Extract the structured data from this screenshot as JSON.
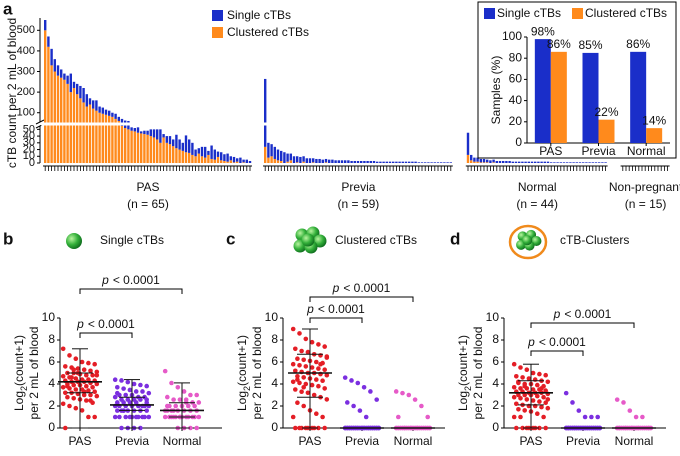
{
  "chart_data": [
    {
      "type": "bar",
      "stacked": true,
      "panel": "a",
      "y_label": "cTB count per 2 mL of blood",
      "series": [
        {
          "name": "Single cTBs",
          "color": "#1a2ec9"
        },
        {
          "name": "Clustered cTBs",
          "color": "#ff8a1c"
        }
      ],
      "ylim_lower": [
        0,
        55
      ],
      "yticks_lower": [
        0,
        10,
        20,
        30,
        40,
        50
      ],
      "ylim_upper": [
        55,
        550
      ],
      "yticks_upper": [
        100,
        200,
        300,
        400,
        500
      ],
      "groups": [
        {
          "label": "PAS",
          "n_label": "(n = 65)",
          "values": [
            [
              50,
              50,
              80,
              60,
              50,
              40,
              30,
              40,
              90,
              30,
              50,
              60,
              70,
              60,
              30,
              40,
              50,
              30,
              30,
              25,
              25,
              20,
              25,
              20,
              15,
              10,
              10,
              5,
              5,
              8,
              3,
              5,
              6,
              10,
              12,
              15,
              20,
              5,
              10,
              12,
              10,
              20,
              15,
              12,
              25,
              20,
              18,
              10,
              8,
              14,
              16,
              6,
              20,
              15,
              8,
              12,
              10,
              12,
              6,
              8,
              5,
              8,
              4,
              5,
              3
            ],
            [
              500,
              420,
              330,
              300,
              280,
              270,
              260,
              240,
              200,
              220,
              190,
              170,
              150,
              130,
              140,
              120,
              110,
              100,
              95,
              90,
              85,
              80,
              70,
              60,
              55,
              52,
              50,
              48,
              47,
              45,
              44,
              43,
              42,
              40,
              38,
              35,
              30,
              38,
              30,
              28,
              25,
              22,
              20,
              18,
              16,
              15,
              12,
              10,
              14,
              10,
              8,
              12,
              6,
              5,
              9,
              4,
              3,
              2,
              4,
              1,
              2,
              0,
              1,
              0,
              0
            ]
          ]
        },
        {
          "label": "Previa",
          "n_label": "(n = 59)",
          "values": [
            [
              240,
              22,
              18,
              18,
              16,
              15,
              16,
              12,
              10,
              10,
              9,
              9,
              8,
              7,
              7,
              6,
              6,
              6,
              5,
              5,
              5,
              5,
              4,
              4,
              4,
              4,
              4,
              3,
              3,
              3,
              3,
              3,
              3,
              3,
              3,
              2,
              2,
              2,
              2,
              2,
              2,
              2,
              2,
              2,
              2,
              2,
              2,
              2,
              1,
              1,
              1,
              1,
              1,
              1,
              1,
              1,
              1,
              1,
              1
            ],
            [
              24,
              8,
              10,
              6,
              4,
              3,
              0,
              2,
              4,
              0,
              1,
              0,
              2,
              0,
              0,
              1,
              0,
              0,
              0,
              1,
              0,
              0,
              0,
              0,
              0,
              0,
              0,
              0,
              0,
              0,
              0,
              0,
              0,
              0,
              0,
              0,
              0,
              0,
              0,
              0,
              0,
              0,
              0,
              0,
              0,
              0,
              0,
              0,
              0,
              0,
              0,
              0,
              0,
              0,
              0,
              0,
              0,
              0,
              0
            ]
          ]
        },
        {
          "label": "Normal",
          "n_label": "(n = 44)",
          "values": [
            [
              33,
              8,
              6,
              6,
              5,
              5,
              4,
              4,
              4,
              3,
              3,
              3,
              3,
              3,
              2,
              2,
              2,
              2,
              2,
              2,
              2,
              2,
              2,
              2,
              2,
              2,
              1,
              1,
              1,
              1,
              1,
              1,
              1,
              1,
              1,
              1,
              1,
              1,
              1,
              1,
              1,
              1,
              1,
              1
            ],
            [
              12,
              4,
              2,
              2,
              1,
              1,
              1,
              0,
              1,
              0,
              0,
              0,
              0,
              0,
              0,
              0,
              0,
              0,
              0,
              0,
              0,
              0,
              0,
              0,
              0,
              0,
              0,
              0,
              0,
              0,
              0,
              0,
              0,
              0,
              0,
              0,
              0,
              0,
              0,
              0,
              0,
              0,
              0,
              0
            ]
          ]
        },
        {
          "label": "Non-pregnant",
          "n_label": "(n = 15)",
          "values": [
            [
              0,
              0,
              0,
              0,
              0,
              0,
              0,
              0,
              0,
              0,
              0,
              0,
              0,
              0,
              0
            ],
            [
              0,
              0,
              0,
              0,
              0,
              0,
              0,
              0,
              0,
              0,
              0,
              0,
              0,
              0,
              0
            ]
          ]
        }
      ]
    },
    {
      "type": "bar",
      "stacked": false,
      "y_label": "Samples (%)",
      "categories": [
        "PAS",
        "Previa",
        "Normal"
      ],
      "series": [
        {
          "name": "Single cTBs",
          "color": "#1a2ec9",
          "values": [
            98,
            85,
            86
          ],
          "value_labels": [
            "98%",
            "85%",
            "86%"
          ]
        },
        {
          "name": "Clustered cTBs",
          "color": "#ff8a1c",
          "values": [
            86,
            22,
            14
          ],
          "value_labels": [
            "86%",
            "22%",
            "14%"
          ]
        }
      ],
      "ylim": [
        0,
        100
      ],
      "yticks": [
        0,
        20,
        40,
        60,
        80,
        100
      ]
    },
    {
      "type": "strip",
      "panel": "b",
      "title": "Single cTBs",
      "y_label": {
        "prefix": "Log",
        "sub": "2",
        "suffix": "(count+1)",
        "line2": "per 2 mL of blood"
      },
      "categories": [
        "PAS",
        "Previa",
        "Normal"
      ],
      "colors": [
        "#e41e26",
        "#7b2fe0",
        "#e65ac8"
      ],
      "ylim": [
        0,
        10
      ],
      "yticks": [
        0,
        2,
        4,
        6,
        8,
        10
      ],
      "values": [
        [
          7.2,
          6.6,
          6.3,
          6.0,
          5.9,
          5.8,
          5.6,
          5.5,
          5.4,
          5.3,
          5.2,
          5.1,
          5.0,
          5.0,
          4.9,
          4.8,
          4.8,
          4.7,
          4.6,
          4.5,
          4.4,
          4.4,
          4.3,
          4.3,
          4.2,
          4.2,
          4.2,
          4.1,
          4.0,
          4.0,
          3.9,
          3.9,
          3.8,
          3.7,
          3.7,
          3.6,
          3.5,
          3.5,
          3.4,
          3.3,
          3.2,
          3.2,
          3.1,
          3.0,
          3.0,
          2.9,
          2.8,
          2.7,
          2.6,
          2.5,
          2.3,
          2.2,
          2.0,
          1.8,
          1.6,
          1.0,
          1.0,
          0,
          4.6,
          5.0,
          3.3,
          2.5,
          4.8,
          3.8,
          5.3
        ],
        [
          4.39,
          4.32,
          4.17,
          4,
          3.91,
          3.81,
          3.7,
          3.58,
          3.46,
          3.32,
          3.32,
          3.17,
          3,
          3,
          3,
          2.81,
          2.81,
          2.81,
          2.58,
          2.58,
          2.58,
          2.58,
          2.32,
          2.32,
          2.32,
          2.32,
          2.32,
          2,
          2,
          2,
          2,
          2,
          2,
          2,
          2,
          1.58,
          1.58,
          1.58,
          1.58,
          1.58,
          1.58,
          1.58,
          1,
          1,
          1,
          1,
          1,
          1,
          1,
          1,
          1,
          1,
          0,
          0,
          0,
          0,
          2.58,
          3.17,
          1.58
        ],
        [
          5.17,
          4.09,
          3.7,
          3.32,
          3,
          3,
          2.81,
          2.58,
          2.58,
          2.32,
          2.32,
          2.32,
          2,
          2,
          2,
          2,
          2,
          1.58,
          1.58,
          1.58,
          1.58,
          1.58,
          1.58,
          1.58,
          1,
          1,
          1,
          1,
          1,
          1,
          1,
          1,
          1,
          1,
          1,
          1,
          0,
          0,
          0,
          0,
          2,
          1.58,
          1,
          2.58
        ]
      ],
      "stats": [
        {
          "min": 0,
          "q1": 3.2,
          "median": 4.2,
          "q3": 5.0,
          "max": 7.2
        },
        {
          "min": 0,
          "q1": 1.6,
          "median": 2.1,
          "q3": 2.8,
          "max": 4.4
        },
        {
          "min": 0,
          "q1": 1.0,
          "median": 1.6,
          "q3": 2.3,
          "max": 4.1
        }
      ],
      "comparisons": [
        {
          "p": "p",
          "label": "< 0.0001"
        },
        {
          "p": "p",
          "label": "< 0.0001"
        }
      ]
    },
    {
      "type": "strip",
      "panel": "c",
      "title": "Clustered cTBs",
      "y_label": {
        "prefix": "Log",
        "sub": "2",
        "suffix": "(count+1)",
        "line2": "per 2 mL of blood"
      },
      "categories": [
        "PAS",
        "Previa",
        "Normal"
      ],
      "colors": [
        "#e41e26",
        "#7b2fe0",
        "#e65ac8"
      ],
      "ylim": [
        0,
        10
      ],
      "yticks": [
        0,
        2,
        4,
        6,
        8,
        10
      ],
      "values": [
        [
          9,
          8.6,
          8.1,
          7.8,
          7.6,
          7.4,
          7.2,
          7,
          6.9,
          6.7,
          6.6,
          6.4,
          6.3,
          6.2,
          6.1,
          6,
          5.9,
          5.8,
          5.7,
          5.6,
          5.5,
          5.4,
          5.3,
          5.2,
          5.1,
          5,
          5,
          4.9,
          4.8,
          4.7,
          4.6,
          4.5,
          4.4,
          4.3,
          4.2,
          4.1,
          4,
          3.9,
          3.8,
          3.6,
          3.5,
          3.3,
          3.2,
          3,
          2.8,
          2.6,
          2.3,
          2,
          1.6,
          1.3,
          1,
          1,
          0,
          0,
          0,
          0,
          0,
          0,
          0,
          0,
          0,
          5.8,
          6.5,
          4.4,
          3.7
        ],
        [
          4.58,
          4.32,
          4.09,
          3.7,
          3.32,
          2.58,
          2.32,
          2,
          1.58,
          1,
          0,
          0,
          0,
          0,
          0,
          0,
          0,
          0,
          0,
          0,
          0,
          0,
          0,
          0,
          0,
          0,
          0,
          0,
          0,
          0,
          0,
          0,
          0,
          0,
          0,
          0,
          0,
          0,
          0,
          0,
          0,
          0,
          0,
          0,
          0,
          0,
          0,
          0,
          0,
          0,
          0,
          0,
          0,
          0,
          0,
          0,
          0,
          0,
          0
        ],
        [
          3.32,
          3.17,
          3,
          2.58,
          2,
          1,
          1,
          0,
          0,
          0,
          0,
          0,
          0,
          0,
          0,
          0,
          0,
          0,
          0,
          0,
          0,
          0,
          0,
          0,
          0,
          0,
          0,
          0,
          0,
          0,
          0,
          0,
          0,
          0,
          0,
          0,
          0,
          0,
          0,
          0,
          0,
          0,
          0,
          0
        ]
      ],
      "stats": [
        {
          "min": 0,
          "q1": 2.8,
          "median": 5.0,
          "q3": 6.7,
          "max": 9
        },
        {
          "min": 0,
          "q1": 0,
          "median": 0,
          "q3": 0,
          "max": 0
        },
        {
          "min": 0,
          "q1": 0,
          "median": 0,
          "q3": 0,
          "max": 0
        }
      ],
      "comparisons": [
        {
          "p": "p",
          "label": "< 0.0001"
        },
        {
          "p": "p",
          "label": "< 0.0001"
        }
      ]
    },
    {
      "type": "strip",
      "panel": "d",
      "title": "cTB-Clusters",
      "y_label": {
        "prefix": "Log",
        "sub": "2",
        "suffix": "(count+1)",
        "line2": "per 2 mL of blood"
      },
      "categories": [
        "PAS",
        "Previa",
        "Normal"
      ],
      "colors": [
        "#e41e26",
        "#7b2fe0",
        "#e65ac8"
      ],
      "ylim": [
        0,
        10
      ],
      "yticks": [
        0,
        2,
        4,
        6,
        8,
        10
      ],
      "values": [
        [
          5.8,
          5.5,
          5.3,
          5,
          4.9,
          4.8,
          4.7,
          4.6,
          4.5,
          4.4,
          4.3,
          4.2,
          4.1,
          4,
          4,
          3.9,
          3.8,
          3.7,
          3.6,
          3.6,
          3.5,
          3.5,
          3.4,
          3.3,
          3.3,
          3.2,
          3.2,
          3.2,
          3.1,
          3,
          3,
          3,
          2.9,
          2.8,
          2.8,
          2.7,
          2.6,
          2.5,
          2.4,
          2.3,
          2.2,
          2.1,
          2,
          2,
          1.9,
          1.8,
          1.7,
          1.6,
          1.5,
          1.3,
          1,
          1,
          1,
          0,
          0,
          0,
          0,
          0,
          0,
          0,
          0,
          3.6,
          2.6,
          4.2,
          3.8
        ],
        [
          3.17,
          2.32,
          1.58,
          1,
          1,
          1,
          0,
          0,
          0,
          0,
          0,
          0,
          0,
          0,
          0,
          0,
          0,
          0,
          0,
          0,
          0,
          0,
          0,
          0,
          0,
          0,
          0,
          0,
          0,
          0,
          0,
          0,
          0,
          0,
          0,
          0,
          0,
          0,
          0,
          0,
          0,
          0,
          0,
          0,
          0,
          0,
          0,
          0,
          0,
          0,
          0,
          0,
          0,
          0,
          0,
          0,
          0,
          0,
          0
        ],
        [
          2.58,
          2.32,
          1.58,
          1,
          1,
          0,
          0,
          0,
          0,
          0,
          0,
          0,
          0,
          0,
          0,
          0,
          0,
          0,
          0,
          0,
          0,
          0,
          0,
          0,
          0,
          0,
          0,
          0,
          0,
          0,
          0,
          0,
          0,
          0,
          0,
          0,
          0,
          0,
          0,
          0,
          0,
          0,
          0,
          0
        ]
      ],
      "stats": [
        {
          "min": 0,
          "q1": 2.1,
          "median": 3.2,
          "q3": 4.3,
          "max": 5.8
        },
        {
          "min": 0,
          "q1": 0,
          "median": 0,
          "q3": 0,
          "max": 0
        },
        {
          "min": 0,
          "q1": 0,
          "median": 0,
          "q3": 0,
          "max": 0
        }
      ],
      "comparisons": [
        {
          "p": "p",
          "label": "< 0.0001"
        },
        {
          "p": "p",
          "label": "< 0.0001"
        }
      ]
    }
  ]
}
